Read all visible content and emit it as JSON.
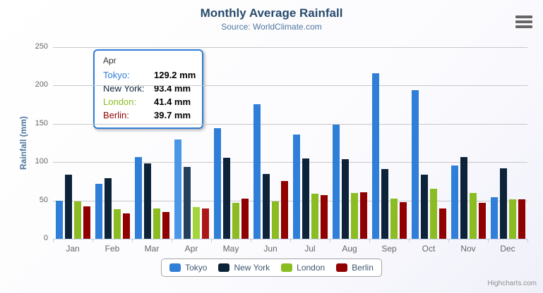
{
  "title": "Monthly Average Rainfall",
  "subtitle": "Source: WorldClimate.com",
  "credits": "Highcharts.com",
  "menu_icon": "hamburger-icon",
  "chart_data": {
    "type": "bar",
    "subtype": "grouped-column",
    "title": "Monthly Average Rainfall",
    "subtitle": "Source: WorldClimate.com",
    "categories": [
      "Jan",
      "Feb",
      "Mar",
      "Apr",
      "May",
      "Jun",
      "Jul",
      "Aug",
      "Sep",
      "Oct",
      "Nov",
      "Dec"
    ],
    "series": [
      {
        "name": "Tokyo",
        "color": "#2f7ed8",
        "hover_color": "#4a97e8",
        "values": [
          49.9,
          71.5,
          106.4,
          129.2,
          144.0,
          176.0,
          135.6,
          148.5,
          216.4,
          194.1,
          95.6,
          54.4
        ]
      },
      {
        "name": "New York",
        "color": "#0d233a",
        "hover_color": "#24405c",
        "values": [
          83.6,
          78.8,
          98.5,
          93.4,
          106.0,
          84.5,
          105.0,
          104.3,
          91.2,
          83.5,
          106.6,
          92.3
        ]
      },
      {
        "name": "London",
        "color": "#8bbc21",
        "hover_color": "#a3d53c",
        "values": [
          48.9,
          38.8,
          39.3,
          41.4,
          47.0,
          48.3,
          59.0,
          59.6,
          52.4,
          65.2,
          59.3,
          51.2
        ]
      },
      {
        "name": "Berlin",
        "color": "#910000",
        "hover_color": "#ad1717",
        "values": [
          42.4,
          33.2,
          34.5,
          39.7,
          52.6,
          75.5,
          57.4,
          60.4,
          47.6,
          39.1,
          46.8,
          51.1
        ]
      }
    ],
    "xlabel": "",
    "ylabel": "Rainfall (mm)",
    "ylim": [
      0,
      250
    ],
    "ytick_interval": 50,
    "ytick_labels": [
      "0",
      "50",
      "100",
      "150",
      "200",
      "250"
    ],
    "grid": true,
    "legend_position": "bottom",
    "hovered_category_index": 3
  },
  "tooltip": {
    "category": "Apr",
    "value_suffix": "mm",
    "rows": [
      {
        "name": "Tokyo",
        "value": "129.2"
      },
      {
        "name": "New York",
        "value": "93.4"
      },
      {
        "name": "London",
        "value": "41.4"
      },
      {
        "name": "Berlin",
        "value": "39.7"
      }
    ]
  }
}
